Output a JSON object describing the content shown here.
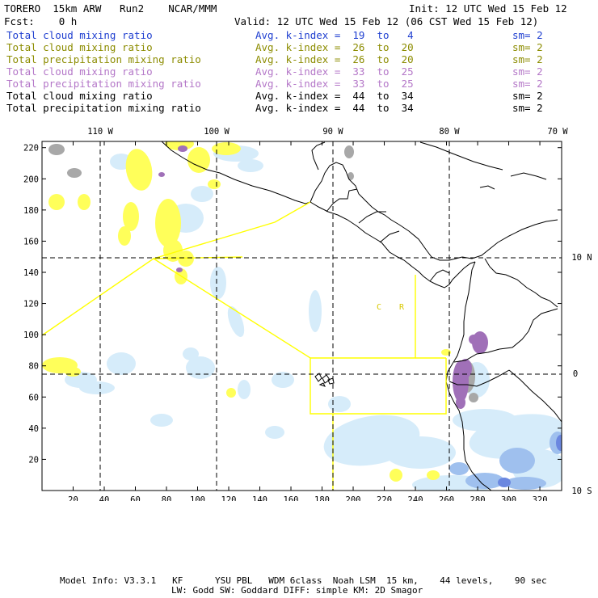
{
  "header": {
    "model_title": "TORERO  15km ARW   Run2    NCAR/MMM",
    "init": "Init: 12 UTC Wed 15 Feb 12",
    "forecast": "Fcst:    0 h",
    "valid": "Valid: 12 UTC Wed 15 Feb 12 (06 CST Wed 15 Feb 12)"
  },
  "legend": [
    {
      "label": "Total cloud mixing ratio",
      "kindex": "Avg. k-index =  19  to   4",
      "sm": "sm= 2",
      "color": "#1f3fd0"
    },
    {
      "label": "Total cloud mixing ratio",
      "kindex": "Avg. k-index =  26  to  20",
      "sm": "sm= 2",
      "color": "#8c8c00"
    },
    {
      "label": "Total precipitation mixing ratio",
      "kindex": "Avg. k-index =  26  to  20",
      "sm": "sm= 2",
      "color": "#8c8c00"
    },
    {
      "label": "Total cloud mixing ratio",
      "kindex": "Avg. k-index =  33  to  25",
      "sm": "sm= 2",
      "color": "#b477c8"
    },
    {
      "label": "Total precipitation mixing ratio",
      "kindex": "Avg. k-index =  33  to  25",
      "sm": "sm= 2",
      "color": "#b477c8"
    },
    {
      "label": "Total cloud mixing ratio",
      "kindex": "Avg. k-index =  44  to  34",
      "sm": "sm= 2",
      "color": "#000000"
    },
    {
      "label": "Total precipitation mixing ratio",
      "kindex": "Avg. k-index =  44  to  34",
      "sm": "sm= 2",
      "color": "#000000"
    }
  ],
  "map": {
    "top_lon_labels": [
      "110 W",
      "100 W",
      "90 W",
      "80 W",
      "70 W"
    ],
    "right_lat_labels": [
      "10 N",
      "0",
      "10 S"
    ],
    "y_ticks": [
      20,
      40,
      60,
      80,
      100,
      120,
      140,
      160,
      180,
      200,
      220
    ],
    "x_ticks": [
      20,
      40,
      60,
      80,
      100,
      120,
      140,
      160,
      180,
      200,
      220,
      240,
      260,
      280,
      300,
      320
    ],
    "inline_labels": {
      "c": "C",
      "r": "R"
    },
    "colors": {
      "gray": "#a8a8a8",
      "yellow": "#ffff5a",
      "purple": "#a070b8",
      "lightblue": "#d6ecfa",
      "blue": "#9fc0ee",
      "darkblue": "#6b87e0",
      "border": "#ffff00"
    }
  },
  "footer": {
    "line1": "Model Info: V3.3.1   KF      YSU PBL   WDM 6class  Noah LSM  15 km,    44 levels,    90 sec",
    "line2": "LW: Godd SW: Goddard DIFF: simple KM: 2D Smagor"
  }
}
